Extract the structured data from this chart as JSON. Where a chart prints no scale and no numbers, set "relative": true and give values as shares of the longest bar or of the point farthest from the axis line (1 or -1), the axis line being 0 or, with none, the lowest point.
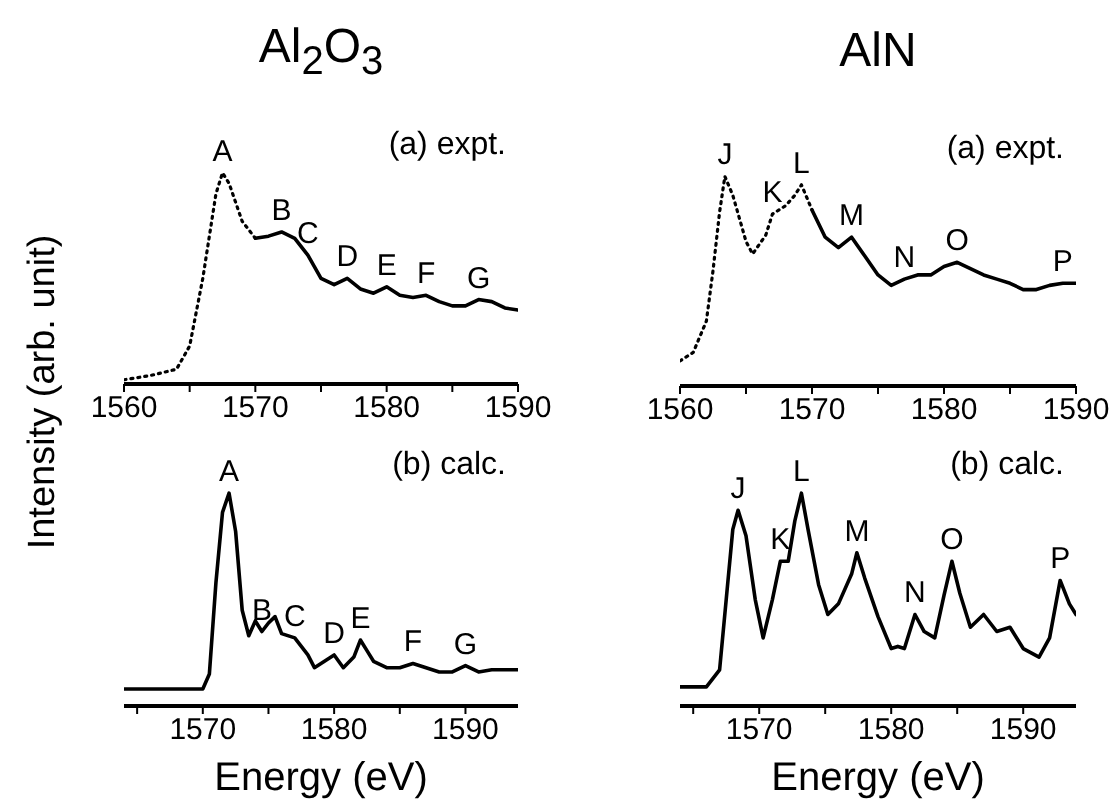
{
  "chart_data": [
    {
      "type": "line",
      "title": "Al$_{2}$O$_{3}$",
      "ylabel": "Intensity (arb. unit)",
      "relative": true,
      "tick_labels": "x",
      "xlim": [
        1560,
        1590
      ],
      "xticks": [
        1560,
        {
          "value": 1565,
          "label": null
        },
        1570,
        {
          "value": 1575,
          "label": null
        },
        1580,
        {
          "value": 1585,
          "label": null
        },
        1590
      ],
      "series": [
        {
          "color": "#000000",
          "line_style": "dotted",
          "x": [
            1560,
            1562,
            1564,
            1565,
            1566,
            1567,
            1567.5,
            1568,
            1569,
            1570
          ],
          "values": [
            0.02,
            0.04,
            0.07,
            0.18,
            0.5,
            0.9,
            1.0,
            0.95,
            0.77,
            0.69
          ]
        },
        {
          "color": "#000000",
          "line_style": "solid",
          "x": [
            1570,
            1571,
            1572,
            1573,
            1574,
            1575,
            1576,
            1577,
            1578,
            1579,
            1580,
            1581,
            1582,
            1583,
            1584,
            1585,
            1586,
            1587,
            1588,
            1589,
            1590
          ],
          "values": [
            0.69,
            0.7,
            0.72,
            0.69,
            0.61,
            0.5,
            0.47,
            0.5,
            0.45,
            0.43,
            0.46,
            0.42,
            0.41,
            0.42,
            0.39,
            0.37,
            0.37,
            0.4,
            0.39,
            0.36,
            0.35
          ]
        }
      ],
      "annotations": [
        "(a) expt.",
        {
          "text": "A",
          "x": 1567.5,
          "y": 1.0
        },
        {
          "text": "B",
          "x": 1572,
          "y": 0.72
        },
        {
          "text": "C",
          "x": 1574,
          "y": 0.61
        },
        {
          "text": "D",
          "x": 1577,
          "y": 0.5
        },
        {
          "text": "E",
          "x": 1580,
          "y": 0.46
        },
        {
          "text": "F",
          "x": 1583,
          "y": 0.42
        },
        {
          "text": "G",
          "x": 1587,
          "y": 0.4
        }
      ]
    },
    {
      "type": "line",
      "title": "AlN",
      "relative": true,
      "tick_labels": "x",
      "xlim": [
        1560,
        1590
      ],
      "xticks": [
        1560,
        {
          "value": 1565,
          "label": null
        },
        1570,
        {
          "value": 1575,
          "label": null
        },
        1580,
        {
          "value": 1585,
          "label": null
        },
        1590
      ],
      "series": [
        {
          "color": "#000000",
          "line_style": "dotted",
          "x": [
            1560,
            1561,
            1562,
            1562.5,
            1563,
            1563.4,
            1564,
            1565,
            1565.5,
            1566.5,
            1567,
            1568,
            1568.7,
            1569.2,
            1570
          ],
          "values": [
            0.12,
            0.16,
            0.31,
            0.55,
            0.83,
            1.0,
            0.91,
            0.69,
            0.63,
            0.72,
            0.82,
            0.86,
            0.91,
            0.96,
            0.84
          ]
        },
        {
          "color": "#000000",
          "line_style": "solid",
          "x": [
            1570,
            1571,
            1572,
            1573,
            1574,
            1575,
            1576,
            1577,
            1578,
            1579,
            1580,
            1581,
            1582,
            1583,
            1584,
            1585,
            1586,
            1587,
            1588,
            1589,
            1590
          ],
          "values": [
            0.84,
            0.71,
            0.66,
            0.71,
            0.62,
            0.53,
            0.48,
            0.51,
            0.53,
            0.53,
            0.57,
            0.59,
            0.56,
            0.53,
            0.51,
            0.49,
            0.46,
            0.46,
            0.48,
            0.49,
            0.49
          ]
        }
      ],
      "annotations": [
        "(a) expt.",
        {
          "text": "J",
          "x": 1563.4,
          "y": 1.0
        },
        {
          "text": "K",
          "x": 1567,
          "y": 0.82
        },
        {
          "text": "L",
          "x": 1569.2,
          "y": 0.96
        },
        {
          "text": "M",
          "x": 1573,
          "y": 0.71
        },
        {
          "text": "N",
          "x": 1577,
          "y": 0.51
        },
        {
          "text": "O",
          "x": 1581,
          "y": 0.59
        },
        {
          "text": "P",
          "x": 1589,
          "y": 0.49
        }
      ]
    },
    {
      "type": "line",
      "xlabel": "Energy (eV)",
      "relative": true,
      "tick_labels": "x",
      "xlim": [
        1564,
        1594
      ],
      "xticks": [
        {
          "value": 1565,
          "label": null
        },
        1570,
        {
          "value": 1575,
          "label": null
        },
        1580,
        {
          "value": 1585,
          "label": null
        },
        1590
      ],
      "series": [
        {
          "color": "#000000",
          "line_style": "solid",
          "x": [
            1564,
            1570,
            1570.5,
            1571,
            1571.5,
            1572,
            1572.5,
            1573,
            1573.5,
            1574,
            1574.5,
            1575,
            1575.5,
            1576,
            1577,
            1578,
            1578.5,
            1579,
            1580,
            1580.7,
            1581.5,
            1582,
            1582.5,
            1583,
            1584,
            1585,
            1586,
            1587,
            1588,
            1589,
            1590,
            1591,
            1592,
            1594
          ],
          "values": [
            0.08,
            0.08,
            0.15,
            0.58,
            0.91,
            1.0,
            0.82,
            0.45,
            0.33,
            0.4,
            0.35,
            0.39,
            0.42,
            0.34,
            0.32,
            0.24,
            0.18,
            0.2,
            0.24,
            0.18,
            0.23,
            0.31,
            0.26,
            0.21,
            0.18,
            0.18,
            0.2,
            0.18,
            0.16,
            0.16,
            0.19,
            0.16,
            0.17,
            0.17
          ]
        }
      ],
      "annotations": [
        "(b) calc.",
        {
          "text": "A",
          "x": 1572,
          "y": 1.0
        },
        {
          "text": "B",
          "x": 1574.5,
          "y": 0.35
        },
        {
          "text": "C",
          "x": 1577,
          "y": 0.32
        },
        {
          "text": "D",
          "x": 1580,
          "y": 0.24
        },
        {
          "text": "E",
          "x": 1582,
          "y": 0.31
        },
        {
          "text": "F",
          "x": 1586,
          "y": 0.2
        },
        {
          "text": "G",
          "x": 1590,
          "y": 0.19
        }
      ]
    },
    {
      "type": "line",
      "xlabel": "Energy (eV)",
      "relative": true,
      "tick_labels": "x",
      "xlim": [
        1564,
        1594
      ],
      "xticks": [
        {
          "value": 1565,
          "label": null
        },
        1570,
        {
          "value": 1575,
          "label": null
        },
        1580,
        {
          "value": 1585,
          "label": null
        },
        1590
      ],
      "series": [
        {
          "color": "#000000",
          "line_style": "solid",
          "x": [
            1564,
            1566,
            1567,
            1567.5,
            1568,
            1568.4,
            1569,
            1569.7,
            1570.3,
            1571,
            1571.6,
            1572.2,
            1572.7,
            1573.2,
            1573.7,
            1574.5,
            1575.2,
            1576,
            1577,
            1577.4,
            1578,
            1579,
            1580,
            1580.5,
            1581,
            1581.8,
            1582.5,
            1583.3,
            1584,
            1584.6,
            1585.2,
            1586,
            1587,
            1588,
            1589,
            1590,
            1591.2,
            1592,
            1592.8,
            1593.5,
            1594
          ],
          "values": [
            0.09,
            0.09,
            0.17,
            0.5,
            0.83,
            0.92,
            0.8,
            0.5,
            0.32,
            0.5,
            0.68,
            0.68,
            0.87,
            1.0,
            0.83,
            0.57,
            0.43,
            0.48,
            0.62,
            0.72,
            0.6,
            0.42,
            0.27,
            0.28,
            0.27,
            0.43,
            0.35,
            0.32,
            0.52,
            0.68,
            0.53,
            0.37,
            0.43,
            0.35,
            0.37,
            0.27,
            0.23,
            0.32,
            0.59,
            0.48,
            0.43
          ]
        }
      ],
      "annotations": [
        "(b) calc.",
        {
          "text": "J",
          "x": 1568.4,
          "y": 0.92
        },
        {
          "text": "K",
          "x": 1571.6,
          "y": 0.68
        },
        {
          "text": "L",
          "x": 1573.2,
          "y": 1.0
        },
        {
          "text": "M",
          "x": 1577.4,
          "y": 0.72
        },
        {
          "text": "N",
          "x": 1581.8,
          "y": 0.43
        },
        {
          "text": "O",
          "x": 1584.6,
          "y": 0.68
        },
        {
          "text": "P",
          "x": 1592.8,
          "y": 0.59
        }
      ]
    }
  ]
}
